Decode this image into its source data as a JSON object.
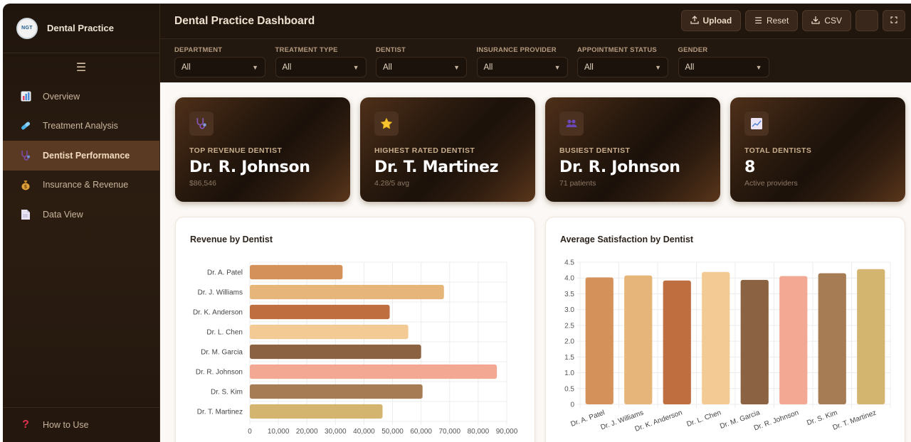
{
  "sidebar": {
    "logo_text": "NGT",
    "brand": "Dental Practice",
    "menu_icon": "☰",
    "items": [
      {
        "label": "Overview",
        "icon": "bar-chart-icon",
        "active": false
      },
      {
        "label": "Treatment Analysis",
        "icon": "pill-icon",
        "active": false
      },
      {
        "label": "Dentist Performance",
        "icon": "stethoscope-icon",
        "active": true
      },
      {
        "label": "Insurance & Revenue",
        "icon": "money-bag-icon",
        "active": false
      },
      {
        "label": "Data View",
        "icon": "document-icon",
        "active": false
      }
    ],
    "help": {
      "label": "How to Use",
      "icon": "question-icon"
    }
  },
  "header": {
    "title": "Dental Practice Dashboard",
    "buttons": {
      "upload": "Upload",
      "reset": "Reset",
      "csv": "CSV"
    }
  },
  "filters": [
    {
      "label": "DEPARTMENT",
      "value": "All"
    },
    {
      "label": "TREATMENT TYPE",
      "value": "All"
    },
    {
      "label": "DENTIST",
      "value": "All"
    },
    {
      "label": "INSURANCE PROVIDER",
      "value": "All"
    },
    {
      "label": "APPOINTMENT STATUS",
      "value": "All"
    },
    {
      "label": "GENDER",
      "value": "All"
    }
  ],
  "kpis": [
    {
      "label": "TOP REVENUE DENTIST",
      "value": "Dr. R. Johnson",
      "sub": "$86,546",
      "icon": "stethoscope-icon"
    },
    {
      "label": "HIGHEST RATED DENTIST",
      "value": "Dr. T. Martinez",
      "sub": "4.28/5 avg",
      "icon": "star-icon"
    },
    {
      "label": "BUSIEST DENTIST",
      "value": "Dr. R. Johnson",
      "sub": "71 patients",
      "icon": "people-icon"
    },
    {
      "label": "TOTAL DENTISTS",
      "value": "8",
      "sub": "Active providers",
      "icon": "trend-chart-icon"
    }
  ],
  "chart_data": [
    {
      "type": "bar",
      "orientation": "horizontal",
      "title": "Revenue by Dentist",
      "categories": [
        "Dr. A. Patel",
        "Dr. J. Williams",
        "Dr. K. Anderson",
        "Dr. L. Chen",
        "Dr. M. Garcia",
        "Dr. R. Johnson",
        "Dr. S. Kim",
        "Dr. T. Martinez"
      ],
      "values": [
        32500,
        68000,
        49000,
        55500,
        60000,
        86546,
        60500,
        46500
      ],
      "colors": [
        "#d4915a",
        "#e6b57a",
        "#bf6e40",
        "#f3c994",
        "#8b6343",
        "#f2a892",
        "#a67c55",
        "#d4b570"
      ],
      "xlim": [
        0,
        90000
      ],
      "xticks": [
        "0",
        "10,000",
        "20,000",
        "30,000",
        "40,000",
        "50,000",
        "60,000",
        "70,000",
        "80,000",
        "90,000"
      ],
      "grid": true,
      "legend": false
    },
    {
      "type": "bar",
      "orientation": "vertical",
      "title": "Average Satisfaction by Dentist",
      "categories": [
        "Dr. A. Patel",
        "Dr. J. Williams",
        "Dr. K. Anderson",
        "Dr. L. Chen",
        "Dr. M. Garcia",
        "Dr. R. Johnson",
        "Dr. S. Kim",
        "Dr. T. Martinez"
      ],
      "values": [
        4.02,
        4.08,
        3.92,
        4.19,
        3.94,
        4.06,
        4.15,
        4.28
      ],
      "colors": [
        "#d4915a",
        "#e6b57a",
        "#bf6e40",
        "#f3c994",
        "#8b6343",
        "#f2a892",
        "#a67c55",
        "#d4b570"
      ],
      "ylim": [
        0,
        4.5
      ],
      "yticks": [
        "0",
        "0.5",
        "1.0",
        "1.5",
        "2.0",
        "2.5",
        "3.0",
        "3.5",
        "4.0",
        "4.5"
      ],
      "grid": true,
      "legend": false
    }
  ]
}
